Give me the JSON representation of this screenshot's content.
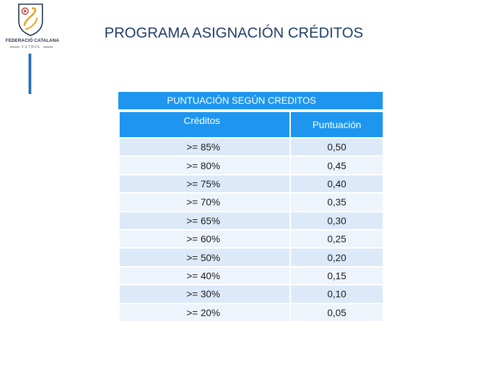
{
  "logo": {
    "name": "FEDERACIÓ CATALANA",
    "sub": "FUTBOL"
  },
  "header": {
    "title": "PROGRAMA ASIGNACIÓN CRÉDITOS"
  },
  "table": {
    "caption": "PUNTUACIÓN SEGÚN CREDITOS",
    "headers": {
      "credits": "Créditos",
      "points": "Puntuación"
    },
    "rows": [
      {
        "credits": ">= 85%",
        "points": "0,50"
      },
      {
        "credits": ">= 80%",
        "points": "0,45"
      },
      {
        "credits": ">= 75%",
        "points": "0,40"
      },
      {
        "credits": ">= 70%",
        "points": "0,35"
      },
      {
        "credits": ">= 65%",
        "points": "0,30"
      },
      {
        "credits": ">= 60%",
        "points": "0,25"
      },
      {
        "credits": ">= 50%",
        "points": "0,20"
      },
      {
        "credits": ">= 40%",
        "points": "0,15"
      },
      {
        "credits": ">= 30%",
        "points": "0,10"
      },
      {
        "credits": ">= 20%",
        "points": "0,05"
      }
    ]
  },
  "colors": {
    "header_blue": "#1e96f0",
    "row_dark": "#dce9f8",
    "row_light": "#eef4fb",
    "title": "#1f3b66",
    "accent_bar": "#2e74b5"
  }
}
